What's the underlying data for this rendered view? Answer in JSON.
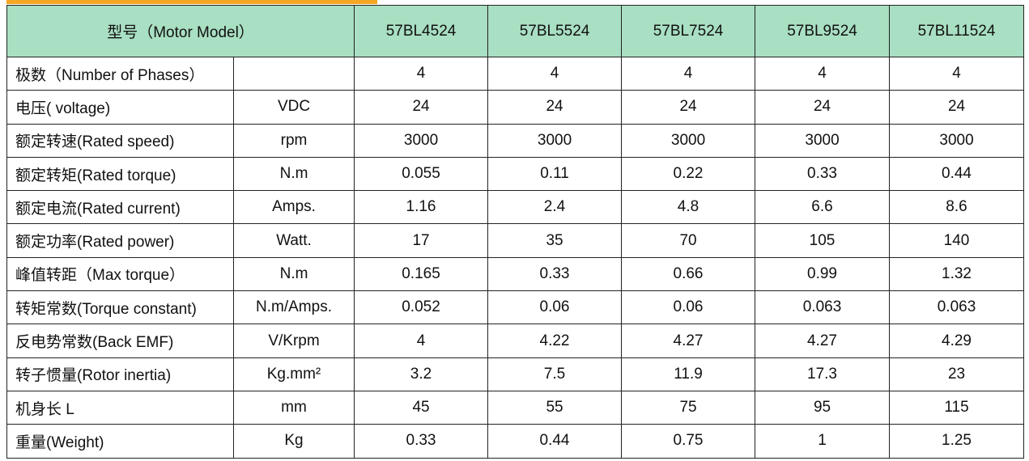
{
  "table": {
    "header": [
      "型号（Motor Model）",
      "57BL4524",
      "57BL5524",
      "57BL7524",
      "57BL9524",
      "57BL11524"
    ],
    "rows": [
      {
        "label": "极数（Number of Phases）",
        "values": [
          4,
          4,
          4,
          4,
          4
        ]
      },
      {
        "label": "电压( voltage)",
        "unit": "VDC",
        "values": [
          24,
          24,
          24,
          24,
          24
        ]
      },
      {
        "label": "额定转速(Rated speed)",
        "unit": "rpm",
        "values": [
          3000,
          3000,
          3000,
          3000,
          3000
        ]
      },
      {
        "label": "额定转矩(Rated torque)",
        "unit": "N.m",
        "values": [
          0.055,
          0.11,
          0.22,
          0.33,
          0.44
        ]
      },
      {
        "label": "额定电流(Rated current)",
        "unit": "Amps.",
        "values": [
          1.16,
          2.4,
          4.8,
          6.6,
          8.6
        ]
      },
      {
        "label": "额定功率(Rated power)",
        "unit": "Watt.",
        "values": [
          17,
          35,
          70,
          105,
          140
        ]
      },
      {
        "label": "峰值转距（Max torque）",
        "unit": "N.m",
        "values": [
          0.165,
          0.33,
          0.66,
          0.99,
          1.32
        ]
      },
      {
        "label": "转矩常数(Torque constant)",
        "unit": "N.m/Amps.",
        "values": [
          0.052,
          0.06,
          0.06,
          0.063,
          0.063
        ]
      },
      {
        "label": "反电势常数(Back EMF)",
        "unit": "V/Krpm",
        "values": [
          4,
          4.22,
          4.27,
          4.27,
          4.29
        ]
      },
      {
        "label": "转子惯量(Rotor inertia)",
        "unit": "Kg.mm²",
        "values": [
          3.2,
          7.5,
          11.9,
          17.3,
          23
        ]
      },
      {
        "label": "机身长 L",
        "unit": "mm",
        "values": [
          45,
          55,
          75,
          95,
          115
        ]
      },
      {
        "label": "重量(Weight)",
        "unit": "Kg",
        "values": [
          0.33,
          0.44,
          0.75,
          1,
          1.25
        ]
      }
    ]
  }
}
